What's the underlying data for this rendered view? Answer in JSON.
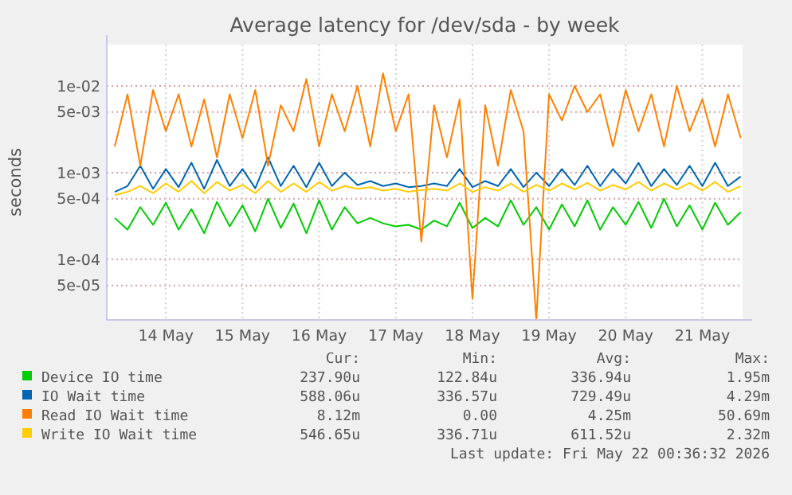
{
  "chart_data": {
    "type": "line",
    "title": "Average latency for /dev/sda - by week",
    "ylabel": "seconds",
    "log": true,
    "grid": true,
    "legend": "bottom",
    "marker": "none",
    "line_style": "solid",
    "xlim": [
      "2026-05-13T17:30",
      "2026-05-22T00:36"
    ],
    "xticks": [
      {
        "value": "2026-05-14T12:00",
        "label": "14 May"
      },
      {
        "value": "2026-05-15T12:00",
        "label": "15 May"
      },
      {
        "value": "2026-05-16T12:00",
        "label": "16 May"
      },
      {
        "value": "2026-05-17T12:00",
        "label": "17 May"
      },
      {
        "value": "2026-05-18T12:00",
        "label": "18 May"
      },
      {
        "value": "2026-05-19T12:00",
        "label": "19 May"
      },
      {
        "value": "2026-05-20T12:00",
        "label": "20 May"
      },
      {
        "value": "2026-05-21T12:00",
        "label": "21 May"
      }
    ],
    "ylim": [
      2e-05,
      0.03
    ],
    "yticks": [
      {
        "value": 5e-05,
        "label": "5e-05"
      },
      {
        "value": 0.0001,
        "label": "1e-04"
      },
      {
        "value": 0.0005,
        "label": "5e-04"
      },
      {
        "value": 0.001,
        "label": "1e-03"
      },
      {
        "value": 0.005,
        "label": "5e-03"
      },
      {
        "value": 0.01,
        "label": "1e-02"
      }
    ],
    "x": [
      "2026-05-13T20:00",
      "2026-05-14T00:00",
      "2026-05-14T04:00",
      "2026-05-14T08:00",
      "2026-05-14T12:00",
      "2026-05-14T16:00",
      "2026-05-14T20:00",
      "2026-05-15T00:00",
      "2026-05-15T04:00",
      "2026-05-15T08:00",
      "2026-05-15T12:00",
      "2026-05-15T16:00",
      "2026-05-15T20:00",
      "2026-05-16T00:00",
      "2026-05-16T04:00",
      "2026-05-16T08:00",
      "2026-05-16T12:00",
      "2026-05-16T16:00",
      "2026-05-16T20:00",
      "2026-05-17T00:00",
      "2026-05-17T04:00",
      "2026-05-17T08:00",
      "2026-05-17T12:00",
      "2026-05-17T16:00",
      "2026-05-17T20:00",
      "2026-05-18T00:00",
      "2026-05-18T04:00",
      "2026-05-18T08:00",
      "2026-05-18T12:00",
      "2026-05-18T16:00",
      "2026-05-18T20:00",
      "2026-05-19T00:00",
      "2026-05-19T04:00",
      "2026-05-19T08:00",
      "2026-05-19T12:00",
      "2026-05-19T16:00",
      "2026-05-19T20:00",
      "2026-05-20T00:00",
      "2026-05-20T04:00",
      "2026-05-20T08:00",
      "2026-05-20T12:00",
      "2026-05-20T16:00",
      "2026-05-20T20:00",
      "2026-05-21T00:00",
      "2026-05-21T04:00",
      "2026-05-21T08:00",
      "2026-05-21T12:00",
      "2026-05-21T16:00",
      "2026-05-21T20:00",
      "2026-05-22T00:00"
    ],
    "series": [
      {
        "name": "Device IO time",
        "color": "#00cc00",
        "values": [
          0.0003,
          0.00022,
          0.0004,
          0.00025,
          0.00045,
          0.00022,
          0.00038,
          0.0002,
          0.00046,
          0.00024,
          0.00042,
          0.00021,
          0.0005,
          0.00023,
          0.00044,
          0.0002,
          0.00048,
          0.00022,
          0.0004,
          0.00026,
          0.0003,
          0.00026,
          0.00024,
          0.00025,
          0.00022,
          0.00028,
          0.00024,
          0.00045,
          0.00023,
          0.0003,
          0.00024,
          0.00048,
          0.00025,
          0.0004,
          0.00022,
          0.00043,
          0.00024,
          0.00048,
          0.00022,
          0.0004,
          0.00025,
          0.00046,
          0.00023,
          0.0005,
          0.00024,
          0.00042,
          0.00022,
          0.00045,
          0.00025,
          0.00035
        ]
      },
      {
        "name": "IO Wait time",
        "color": "#0066b3",
        "values": [
          0.0006,
          0.0007,
          0.0012,
          0.00065,
          0.0011,
          0.00068,
          0.0013,
          0.00065,
          0.0014,
          0.0007,
          0.0011,
          0.00066,
          0.0015,
          0.0007,
          0.0012,
          0.00068,
          0.0013,
          0.0007,
          0.001,
          0.00072,
          0.0008,
          0.0007,
          0.00075,
          0.00068,
          0.0007,
          0.00075,
          0.0007,
          0.0011,
          0.00068,
          0.0008,
          0.0007,
          0.0011,
          0.00068,
          0.001,
          0.0007,
          0.0011,
          0.00072,
          0.0012,
          0.0007,
          0.0011,
          0.00075,
          0.0013,
          0.0007,
          0.0011,
          0.00072,
          0.0012,
          0.0007,
          0.0013,
          0.0007,
          0.0009
        ]
      },
      {
        "name": "Read IO Wait time",
        "color": "#ff8000",
        "values": [
          0.002,
          0.008,
          0.0012,
          0.009,
          0.003,
          0.008,
          0.002,
          0.007,
          0.0015,
          0.008,
          0.0025,
          0.009,
          0.0012,
          0.006,
          0.003,
          0.012,
          0.002,
          0.008,
          0.003,
          0.01,
          0.002,
          0.014,
          0.003,
          0.008,
          0.00016,
          0.006,
          0.0015,
          0.007,
          3.5e-05,
          0.006,
          0.0012,
          0.009,
          0.003,
          2e-05,
          0.008,
          0.004,
          0.01,
          0.005,
          0.008,
          0.002,
          0.009,
          0.003,
          0.008,
          0.002,
          0.01,
          0.003,
          0.007,
          0.002,
          0.008,
          0.0025
        ]
      },
      {
        "name": "Write IO Wait time",
        "color": "#ffcc00",
        "values": [
          0.00055,
          0.0006,
          0.0007,
          0.00058,
          0.00075,
          0.0006,
          0.0008,
          0.00058,
          0.00078,
          0.00062,
          0.00072,
          0.00058,
          0.0008,
          0.0006,
          0.00075,
          0.0006,
          0.00078,
          0.00062,
          0.0007,
          0.00065,
          0.00068,
          0.00062,
          0.00065,
          0.0006,
          0.00063,
          0.00065,
          0.00062,
          0.00075,
          0.0006,
          0.00068,
          0.00062,
          0.00075,
          0.0006,
          0.00072,
          0.00062,
          0.00075,
          0.00064,
          0.00076,
          0.00062,
          0.00072,
          0.00064,
          0.00078,
          0.00062,
          0.00075,
          0.00064,
          0.00076,
          0.00062,
          0.00078,
          0.0006,
          0.0007
        ]
      }
    ],
    "annotations": [
      "Cur:",
      "Min:",
      "Avg:",
      "Max:",
      "237.90u",
      "122.84u",
      "336.94u",
      "1.95m",
      "588.06u",
      "336.57u",
      "729.49u",
      "4.29m",
      "8.12m",
      "0.00",
      "4.25m",
      "50.69m",
      "546.65u",
      "336.71u",
      "611.52u",
      "2.32m",
      "Last update: Fri May 22 00:36:32 2026"
    ]
  }
}
